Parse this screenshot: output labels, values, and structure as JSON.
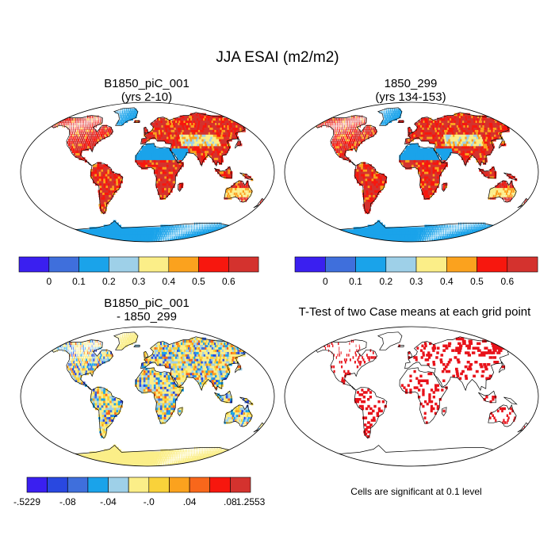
{
  "title": "JJA ESAI (m2/m2)",
  "panels": [
    {
      "title_line1": "B1850_piC_001",
      "title_line2": "(yrs 2-10)",
      "field": "abs"
    },
    {
      "title_line1": "1850_299",
      "title_line2": "(yrs 134-153)",
      "field": "abs"
    },
    {
      "title_line1": "B1850_piC_001",
      "title_line2": "- 1850_299",
      "field": "diff"
    },
    {
      "title_line1": "T-Test of two Case means at each grid point",
      "title_line2": "",
      "field": "ttest"
    }
  ],
  "colorbar_abs": {
    "colors": [
      "#3a1ff0",
      "#3f6fdc",
      "#1aa3ea",
      "#9ed0e8",
      "#fbee88",
      "#fba21e",
      "#f7170e",
      "#d4322e"
    ],
    "labels": [
      "0",
      "0.1",
      "0.2",
      "0.3",
      "0.4",
      "0.5",
      "0.6"
    ]
  },
  "colorbar_diff": {
    "colors": [
      "#3a1ff0",
      "#2948e0",
      "#3f6fdc",
      "#1aa3ea",
      "#9ed0e8",
      "#fbee88",
      "#f9d23a",
      "#fba21e",
      "#f8671b",
      "#f7170e",
      "#d4322e"
    ],
    "labels": [
      ".5229",
      "-.08",
      "-.04",
      "-.0",
      ".04",
      ".08",
      "1.2553"
    ],
    "first_label_prefix": "-"
  },
  "ttest_note": "Cells are significant at 0.1 level",
  "colors": {
    "ttest_cells": "#e8121a",
    "land_outline": "#000000",
    "background": "#ffffff"
  }
}
